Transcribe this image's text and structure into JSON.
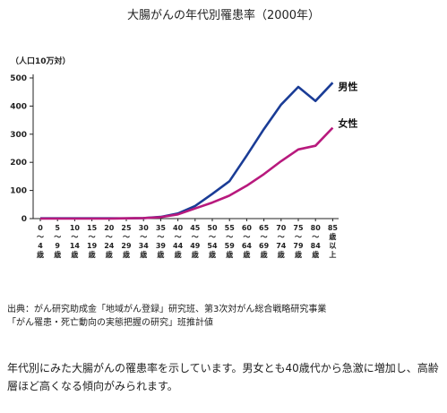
{
  "title": "大腸がんの年代別罹患率（2000年）",
  "source_lines": [
    "出典：がん研究助成金「地域がん登録」研究班、第3次対がん総合戦略研究事業",
    "「がん罹患・死亡動向の実態把握の研究」班推計値"
  ],
  "description": "年代別にみた大腸がんの罹患率を示しています。男女とも40歳代から急激に増加し、高齢層ほど高くなる傾向がみられます。",
  "colors": {
    "male": "#1a3c96",
    "female": "#b8197d",
    "axis": "#222222"
  },
  "chart_data": {
    "type": "line",
    "title": "大腸がんの年代別罹患率（2000年）",
    "ylabel": "（人口10万対）",
    "ylim": [
      0,
      500
    ],
    "yticks": [
      0,
      100,
      200,
      300,
      400,
      500
    ],
    "grid": false,
    "categories": [
      [
        "0",
        "〜",
        "4",
        "歳"
      ],
      [
        "5",
        "〜",
        "9",
        "歳"
      ],
      [
        "10",
        "〜",
        "14",
        "歳"
      ],
      [
        "15",
        "〜",
        "19",
        "歳"
      ],
      [
        "20",
        "〜",
        "24",
        "歳"
      ],
      [
        "25",
        "〜",
        "29",
        "歳"
      ],
      [
        "30",
        "〜",
        "34",
        "歳"
      ],
      [
        "35",
        "〜",
        "39",
        "歳"
      ],
      [
        "40",
        "〜",
        "44",
        "歳"
      ],
      [
        "45",
        "〜",
        "49",
        "歳"
      ],
      [
        "50",
        "〜",
        "54",
        "歳"
      ],
      [
        "55",
        "〜",
        "59",
        "歳"
      ],
      [
        "60",
        "〜",
        "64",
        "歳"
      ],
      [
        "65",
        "〜",
        "69",
        "歳"
      ],
      [
        "70",
        "〜",
        "74",
        "歳"
      ],
      [
        "75",
        "〜",
        "79",
        "歳"
      ],
      [
        "80",
        "〜",
        "84",
        "歳"
      ],
      [
        "85",
        "歳",
        "以",
        "上"
      ]
    ],
    "series": [
      {
        "name": "男性",
        "color": "#1a3c96",
        "values": [
          1,
          1,
          1,
          1,
          1,
          1,
          2,
          6,
          18,
          45,
          88,
          133,
          224,
          318,
          405,
          468,
          418,
          483
        ]
      },
      {
        "name": "女性",
        "color": "#b8197d",
        "values": [
          0,
          0,
          0,
          0,
          0,
          1,
          2,
          5,
          15,
          36,
          57,
          82,
          117,
          158,
          204,
          246,
          259,
          323
        ]
      }
    ]
  }
}
